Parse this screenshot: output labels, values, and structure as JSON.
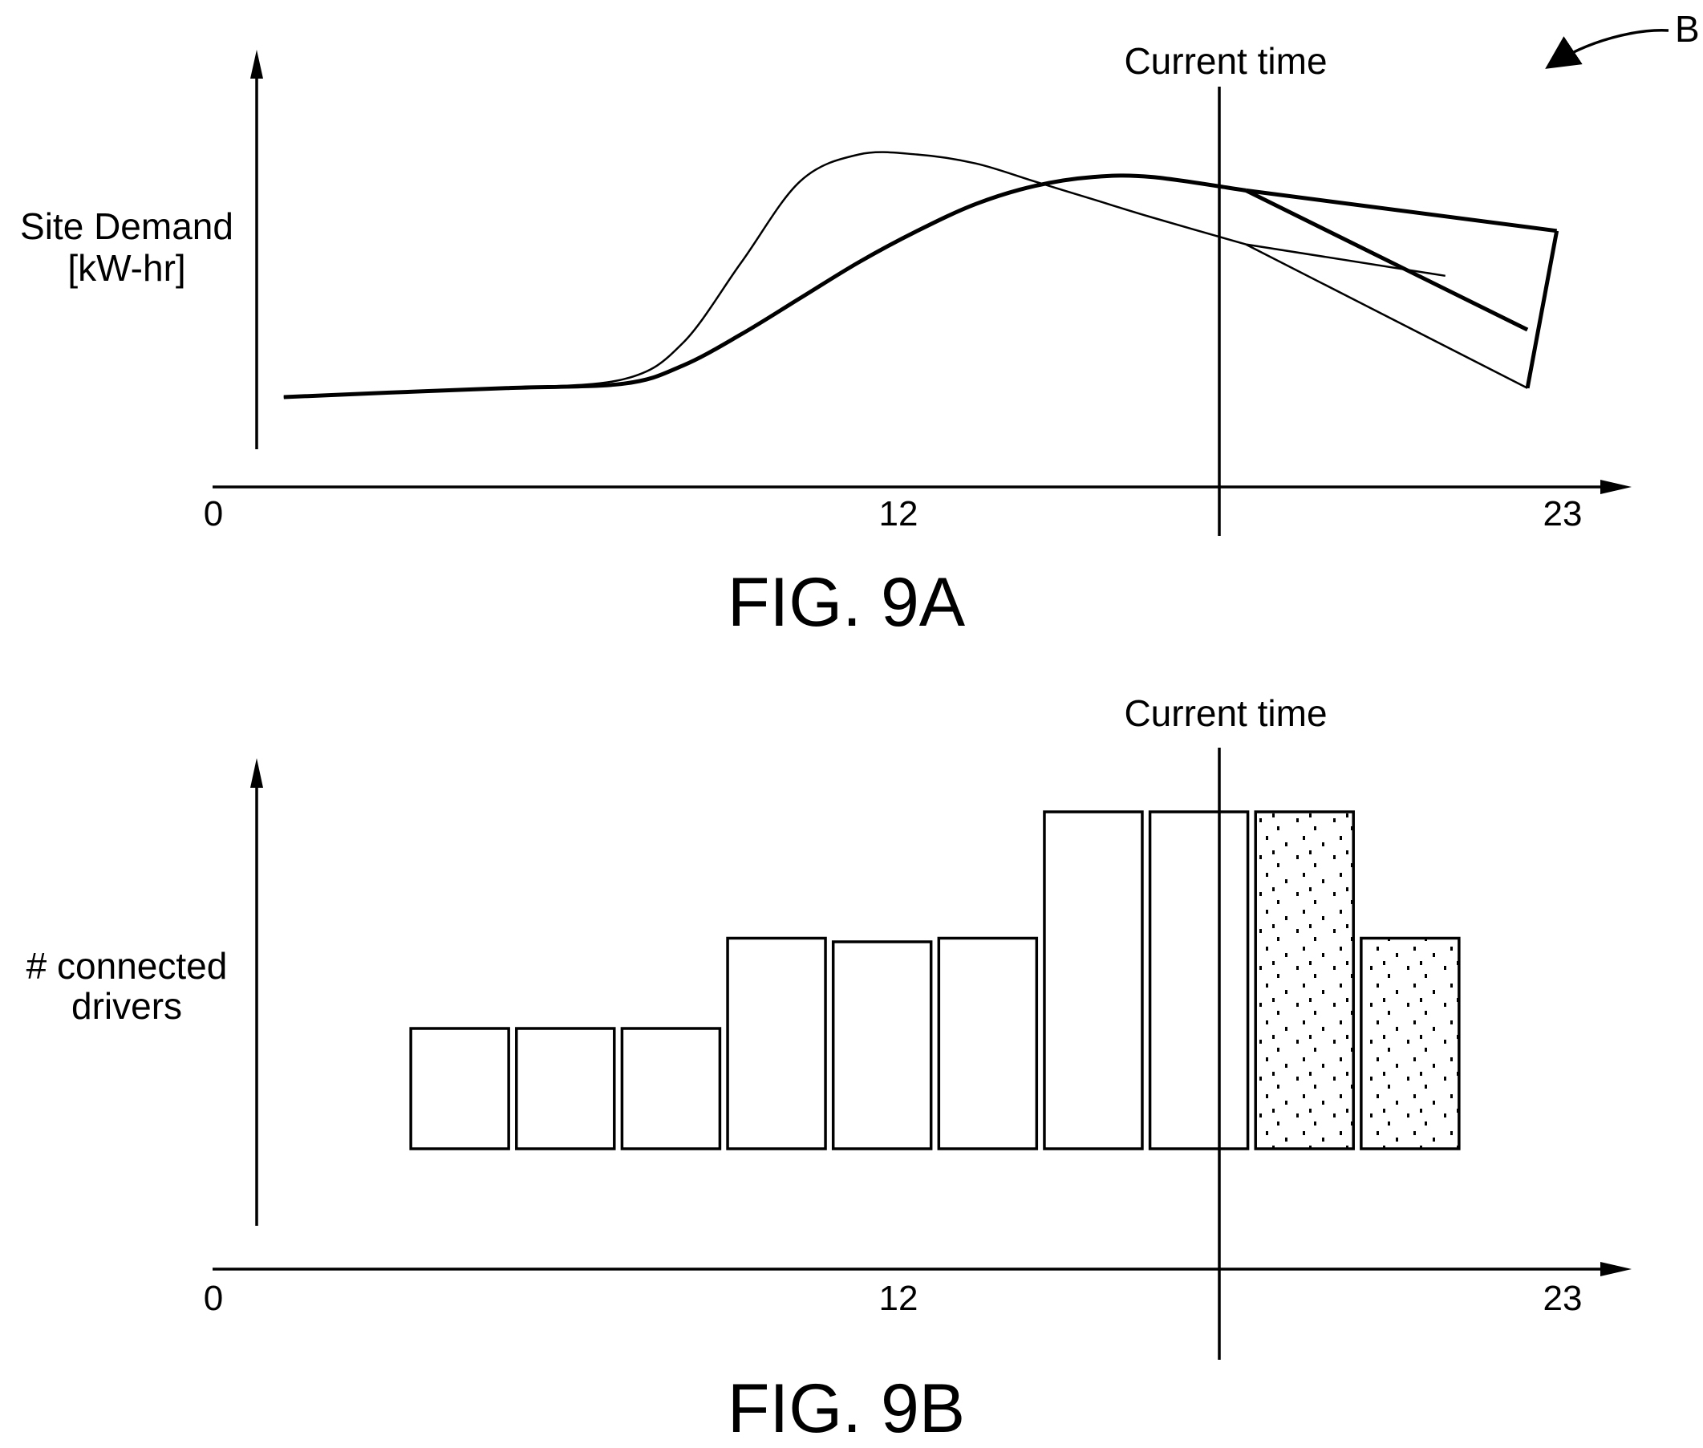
{
  "reference_label": "B",
  "chart_data": [
    {
      "type": "line",
      "figure_label": "FIG. 9A",
      "title": "",
      "ylabel_lines": [
        "Site Demand",
        "[kW-hr]"
      ],
      "xlabel": "",
      "x_ticks": [
        "0",
        "12",
        "23"
      ],
      "xlim": [
        0,
        23
      ],
      "marker": {
        "x": 17.6,
        "label": "Current time"
      },
      "grid": false,
      "legend": "none",
      "series": [
        {
          "style": "thin",
          "x": [
            1.2,
            3,
            5,
            7,
            8,
            9,
            10,
            11,
            12,
            13,
            14,
            15,
            16,
            17.6
          ],
          "y": [
            0.2,
            0.21,
            0.22,
            0.24,
            0.32,
            0.5,
            0.68,
            0.74,
            0.74,
            0.72,
            0.68,
            0.64,
            0.6,
            0.54
          ]
        },
        {
          "style": "thick",
          "x": [
            1.2,
            3,
            5,
            7,
            8,
            9,
            10,
            11,
            12,
            13,
            14,
            15,
            16,
            17.6
          ],
          "y": [
            0.2,
            0.21,
            0.22,
            0.23,
            0.27,
            0.34,
            0.42,
            0.5,
            0.57,
            0.63,
            0.67,
            0.69,
            0.69,
            0.66
          ]
        },
        {
          "style": "thin-forecast",
          "x": [
            17.6,
            22.4
          ],
          "y": [
            0.54,
            0.22
          ]
        },
        {
          "style": "thick-forecast",
          "x": [
            17.6,
            22.4
          ],
          "y": [
            0.66,
            0.35
          ]
        },
        {
          "style": "thick-forecast",
          "x": [
            17.6,
            22.9
          ],
          "y": [
            0.66,
            0.57
          ]
        },
        {
          "style": "thin-forecast",
          "x": [
            17.6,
            21.0
          ],
          "y": [
            0.54,
            0.47
          ]
        },
        {
          "style": "thick-forecast",
          "x": [
            22.9,
            22.4
          ],
          "y": [
            0.57,
            0.22
          ]
        }
      ]
    },
    {
      "type": "bar",
      "figure_label": "FIG. 9B",
      "title": "",
      "ylabel_lines": [
        "# connected",
        "drivers"
      ],
      "xlabel": "",
      "x_ticks": [
        "0",
        "12",
        "23"
      ],
      "xlim": [
        0,
        23
      ],
      "ylim": [
        0,
        4
      ],
      "marker": {
        "x": 17.6,
        "label": "Current time"
      },
      "grid": false,
      "legend": "none",
      "series": [
        {
          "name": "",
          "values": [
            {
              "x": 4.2,
              "value": 1.0,
              "forecast": false
            },
            {
              "x": 6.0,
              "value": 1.0,
              "forecast": false
            },
            {
              "x": 7.8,
              "value": 1.0,
              "forecast": false
            },
            {
              "x": 9.6,
              "value": 1.75,
              "forecast": false
            },
            {
              "x": 11.4,
              "value": 1.72,
              "forecast": false
            },
            {
              "x": 13.2,
              "value": 1.75,
              "forecast": false
            },
            {
              "x": 15.0,
              "value": 2.8,
              "forecast": false
            },
            {
              "x": 16.8,
              "value": 2.8,
              "forecast": true
            },
            {
              "x": 18.6,
              "value": 2.8,
              "forecast": true
            },
            {
              "x": 20.4,
              "value": 1.75,
              "forecast": true
            }
          ]
        }
      ]
    }
  ]
}
